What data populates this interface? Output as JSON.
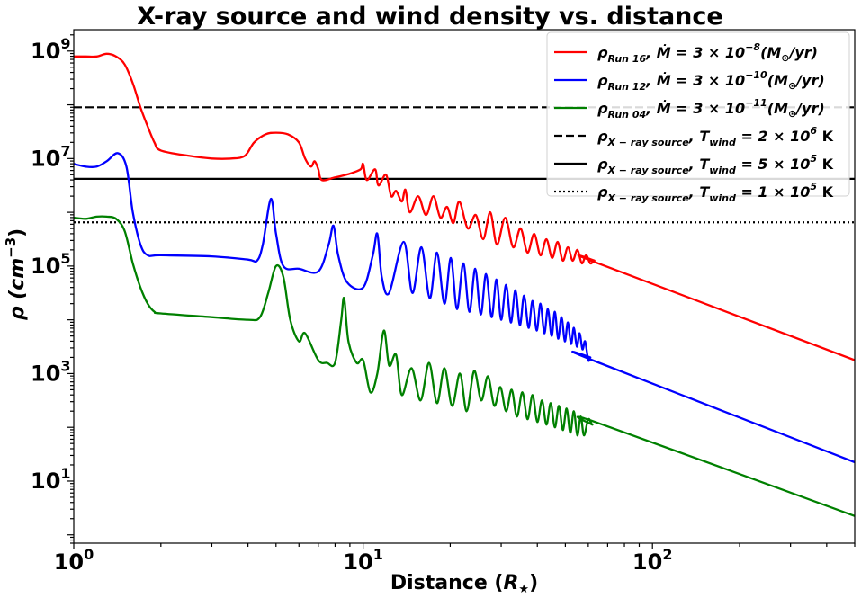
{
  "chart_data": {
    "type": "line",
    "title": "X-ray source and wind density vs. distance",
    "xlabel": "Distance",
    "xlabel_unit": "R",
    "xlabel_unit_sub": "★",
    "ylabel": "ρ",
    "ylabel_unit": "cm",
    "ylabel_unit_exp": "−3",
    "x_scale": "log",
    "y_scale": "log",
    "xlim": [
      1.0,
      500
    ],
    "ylim": [
      0.7,
      2500000000
    ],
    "x_ticks": [
      {
        "value": 1,
        "base": "10",
        "exp": "0"
      },
      {
        "value": 10,
        "base": "10",
        "exp": "1"
      },
      {
        "value": 100,
        "base": "10",
        "exp": "2"
      }
    ],
    "y_ticks": [
      {
        "value": 10,
        "base": "10",
        "exp": "1"
      },
      {
        "value": 1000,
        "base": "10",
        "exp": "3"
      },
      {
        "value": 100000,
        "base": "10",
        "exp": "5"
      },
      {
        "value": 10000000,
        "base": "10",
        "exp": "7"
      },
      {
        "value": 1000000000,
        "base": "10",
        "exp": "9"
      }
    ],
    "legend_position": "top-right",
    "series": [
      {
        "name": "ρ_Run 16, Ṁ = 3 × 10^-8 (M☉/yr)",
        "rho_sub": "Run 16",
        "mdot_exp": "−8",
        "color": "#ff0000",
        "style": "solid",
        "offset": 2.1,
        "points": [
          [
            1.0,
            8.9
          ],
          [
            1.1,
            8.9
          ],
          [
            1.2,
            8.9
          ],
          [
            1.3,
            8.95
          ],
          [
            1.4,
            8.9
          ],
          [
            1.5,
            8.75
          ],
          [
            1.6,
            8.4
          ],
          [
            1.7,
            7.95
          ],
          [
            1.8,
            7.6
          ],
          [
            1.9,
            7.3
          ],
          [
            2.0,
            7.15
          ],
          [
            2.5,
            7.05
          ],
          [
            3.0,
            7.0
          ],
          [
            3.5,
            7.0
          ],
          [
            3.9,
            7.05
          ],
          [
            4.2,
            7.3
          ],
          [
            4.6,
            7.45
          ],
          [
            5.0,
            7.48
          ],
          [
            5.5,
            7.45
          ],
          [
            6.0,
            7.3
          ],
          [
            6.3,
            7.0
          ],
          [
            6.6,
            6.85
          ],
          [
            6.8,
            6.95
          ],
          [
            7.0,
            6.8
          ],
          [
            7.2,
            6.6
          ],
          [
            8.0,
            6.65
          ],
          [
            9.0,
            6.72
          ],
          [
            9.8,
            6.8
          ],
          [
            10.0,
            6.9
          ],
          [
            10.3,
            6.6
          ],
          [
            11.0,
            6.8
          ],
          [
            11.3,
            6.5
          ],
          [
            12.0,
            6.7
          ],
          [
            12.5,
            6.3
          ],
          [
            13.0,
            6.4
          ],
          [
            13.6,
            6.2
          ],
          [
            14.0,
            6.42
          ],
          [
            14.5,
            6.0
          ],
          [
            15.5,
            6.3
          ],
          [
            16.5,
            5.95
          ],
          [
            17.5,
            6.3
          ],
          [
            18.5,
            5.9
          ],
          [
            19.5,
            6.1
          ],
          [
            20.5,
            5.8
          ],
          [
            21.5,
            6.2
          ],
          [
            23.0,
            5.7
          ],
          [
            24.5,
            5.95
          ],
          [
            26.0,
            5.5
          ],
          [
            27.5,
            6.0
          ],
          [
            29.0,
            5.4
          ],
          [
            31.0,
            5.9
          ],
          [
            33.0,
            5.35
          ],
          [
            35.0,
            5.7
          ],
          [
            37.0,
            5.25
          ],
          [
            39.0,
            5.6
          ],
          [
            41.0,
            5.2
          ],
          [
            43.0,
            5.5
          ],
          [
            45.0,
            5.15
          ],
          [
            47.0,
            5.45
          ],
          [
            49.0,
            5.1
          ],
          [
            51.0,
            5.35
          ],
          [
            53.0,
            5.1
          ],
          [
            55.0,
            5.3
          ],
          [
            57.0,
            5.05
          ],
          [
            59.0,
            5.2
          ],
          [
            61.0,
            5.05
          ],
          [
            63.0,
            5.1
          ],
          [
            65.0,
            5.05
          ],
          [
            500.0,
            3.25
          ]
        ]
      },
      {
        "name": "ρ_Run 12, Ṁ = 3 × 10^-10 (M☉/yr)",
        "rho_sub": "Run 12",
        "mdot_exp": "−10",
        "color": "#0000ff",
        "style": "solid",
        "offset": 0.0,
        "points": [
          [
            1.0,
            6.9
          ],
          [
            1.1,
            6.85
          ],
          [
            1.2,
            6.85
          ],
          [
            1.3,
            6.95
          ],
          [
            1.42,
            7.1
          ],
          [
            1.52,
            6.85
          ],
          [
            1.6,
            6.0
          ],
          [
            1.7,
            5.4
          ],
          [
            1.8,
            5.2
          ],
          [
            2.0,
            5.2
          ],
          [
            3.0,
            5.18
          ],
          [
            4.0,
            5.12
          ],
          [
            4.3,
            5.1
          ],
          [
            4.5,
            5.4
          ],
          [
            4.8,
            6.25
          ],
          [
            5.0,
            5.6
          ],
          [
            5.3,
            5.0
          ],
          [
            6.0,
            4.95
          ],
          [
            7.0,
            4.9
          ],
          [
            7.6,
            5.4
          ],
          [
            7.9,
            5.75
          ],
          [
            8.2,
            5.2
          ],
          [
            8.8,
            4.7
          ],
          [
            10.0,
            4.6
          ],
          [
            10.8,
            5.2
          ],
          [
            11.2,
            5.6
          ],
          [
            11.6,
            4.8
          ],
          [
            12.3,
            4.5
          ],
          [
            13.8,
            5.45
          ],
          [
            14.8,
            4.5
          ],
          [
            15.9,
            5.35
          ],
          [
            17.0,
            4.4
          ],
          [
            18.0,
            5.25
          ],
          [
            19.1,
            4.3
          ],
          [
            20.1,
            5.15
          ],
          [
            21.1,
            4.2
          ],
          [
            22.2,
            5.05
          ],
          [
            23.3,
            4.15
          ],
          [
            24.4,
            4.95
          ],
          [
            25.5,
            4.1
          ],
          [
            26.6,
            4.85
          ],
          [
            27.8,
            4.05
          ],
          [
            28.9,
            4.75
          ],
          [
            30.0,
            4.0
          ],
          [
            31.2,
            4.65
          ],
          [
            32.4,
            3.95
          ],
          [
            33.6,
            4.55
          ],
          [
            34.8,
            3.9
          ],
          [
            36.0,
            4.45
          ],
          [
            37.3,
            3.85
          ],
          [
            38.5,
            4.35
          ],
          [
            39.8,
            3.8
          ],
          [
            41.0,
            4.3
          ],
          [
            42.3,
            3.75
          ],
          [
            43.5,
            4.2
          ],
          [
            44.8,
            3.7
          ],
          [
            46.0,
            4.15
          ],
          [
            47.2,
            3.65
          ],
          [
            48.5,
            4.05
          ],
          [
            49.8,
            3.6
          ],
          [
            51.0,
            3.95
          ],
          [
            52.3,
            3.55
          ],
          [
            53.5,
            3.85
          ],
          [
            54.8,
            3.5
          ],
          [
            56.0,
            3.75
          ],
          [
            57.3,
            3.45
          ],
          [
            58.5,
            3.6
          ],
          [
            60.0,
            3.25
          ],
          [
            61.0,
            3.3
          ],
          [
            62.0,
            3.25
          ],
          [
            500.0,
            1.35
          ]
        ]
      },
      {
        "name": "ρ_Run 04, Ṁ = 3 × 10^-11 (M☉/yr)",
        "rho_sub": "Run 04",
        "mdot_exp": "−11",
        "color": "#008000",
        "style": "solid",
        "offset": -1.0,
        "points": [
          [
            1.0,
            5.9
          ],
          [
            1.1,
            5.88
          ],
          [
            1.2,
            5.92
          ],
          [
            1.3,
            5.92
          ],
          [
            1.4,
            5.88
          ],
          [
            1.5,
            5.65
          ],
          [
            1.6,
            5.05
          ],
          [
            1.7,
            4.6
          ],
          [
            1.8,
            4.3
          ],
          [
            1.9,
            4.15
          ],
          [
            2.0,
            4.12
          ],
          [
            3.0,
            4.05
          ],
          [
            4.0,
            4.0
          ],
          [
            4.4,
            4.05
          ],
          [
            4.7,
            4.5
          ],
          [
            5.0,
            5.0
          ],
          [
            5.3,
            4.8
          ],
          [
            5.6,
            4.0
          ],
          [
            6.0,
            3.6
          ],
          [
            6.3,
            3.75
          ],
          [
            7.0,
            3.25
          ],
          [
            7.5,
            3.2
          ],
          [
            8.0,
            3.2
          ],
          [
            8.4,
            4.0
          ],
          [
            8.6,
            4.4
          ],
          [
            8.9,
            3.6
          ],
          [
            9.5,
            3.2
          ],
          [
            10.0,
            3.25
          ],
          [
            10.6,
            2.65
          ],
          [
            11.2,
            3.0
          ],
          [
            11.8,
            3.8
          ],
          [
            12.3,
            3.15
          ],
          [
            13.0,
            3.35
          ],
          [
            13.6,
            2.6
          ],
          [
            14.7,
            3.1
          ],
          [
            15.8,
            2.5
          ],
          [
            16.9,
            3.2
          ],
          [
            18.0,
            2.45
          ],
          [
            19.1,
            3.1
          ],
          [
            20.3,
            2.4
          ],
          [
            21.6,
            3.0
          ],
          [
            22.8,
            2.3
          ],
          [
            24.2,
            3.05
          ],
          [
            25.6,
            2.5
          ],
          [
            27.0,
            2.95
          ],
          [
            28.4,
            2.4
          ],
          [
            29.8,
            2.75
          ],
          [
            31.2,
            2.3
          ],
          [
            32.6,
            2.7
          ],
          [
            34.0,
            2.2
          ],
          [
            35.5,
            2.65
          ],
          [
            37.0,
            2.15
          ],
          [
            38.5,
            2.6
          ],
          [
            40.0,
            2.1
          ],
          [
            41.5,
            2.5
          ],
          [
            43.0,
            2.05
          ],
          [
            44.5,
            2.45
          ],
          [
            46.0,
            2.0
          ],
          [
            47.5,
            2.4
          ],
          [
            49.0,
            1.95
          ],
          [
            50.5,
            2.35
          ],
          [
            52.0,
            1.9
          ],
          [
            53.5,
            2.3
          ],
          [
            55.0,
            1.85
          ],
          [
            56.5,
            2.2
          ],
          [
            58.0,
            1.85
          ],
          [
            60.0,
            2.15
          ],
          [
            62.0,
            2.05
          ],
          [
            65.0,
            2.08
          ],
          [
            500.0,
            0.35
          ]
        ]
      }
    ],
    "hlines": [
      {
        "name": "ρ_X-ray source, T_wind = 2 × 10^6 K",
        "rho_sub": "X − ray source",
        "t_mant": "2",
        "t_exp": "6",
        "color": "#000000",
        "style": "dashed",
        "y": 90000000
      },
      {
        "name": "ρ_X-ray source, T_wind = 5 × 10^5 K",
        "rho_sub": "X − ray source",
        "t_mant": "5",
        "t_exp": "5",
        "color": "#000000",
        "style": "solid",
        "y": 4200000
      },
      {
        "name": "ρ_X-ray source, T_wind = 1 × 10^5 K",
        "rho_sub": "X − ray source",
        "t_mant": "1",
        "t_exp": "5",
        "color": "#000000",
        "style": "dotted",
        "y": 650000
      }
    ]
  }
}
